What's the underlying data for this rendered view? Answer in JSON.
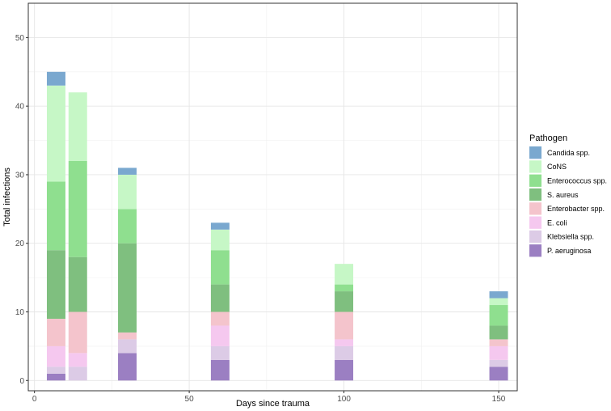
{
  "chart_data": {
    "type": "bar",
    "stacked": true,
    "xlabel": "Days since trauma",
    "ylabel": "Total infections",
    "xlim": [
      -2,
      156
    ],
    "ylim": [
      -1.5,
      55
    ],
    "xticks": [
      0,
      50,
      100,
      150
    ],
    "yticks": [
      0,
      10,
      20,
      30,
      40,
      50
    ],
    "grid": true,
    "legend_position": "right",
    "legend_title": "Pathogen",
    "bar_width_days": 6,
    "x": [
      7,
      14,
      30,
      60,
      100,
      150
    ],
    "series": [
      {
        "name": "P. aeruginosa",
        "color": "#9b7fc2",
        "values": [
          1,
          0,
          4,
          3,
          3,
          2
        ]
      },
      {
        "name": "Klebsiella spp.",
        "color": "#dccbe6",
        "values": [
          1,
          2,
          2,
          2,
          2,
          1
        ]
      },
      {
        "name": "E. coli",
        "color": "#f5c8ef",
        "values": [
          3,
          2,
          0,
          3,
          1,
          2
        ]
      },
      {
        "name": "Enterobacter spp.",
        "color": "#f4c4cc",
        "values": [
          4,
          6,
          1,
          2,
          4,
          1
        ]
      },
      {
        "name": "S. aureus",
        "color": "#7fbf7f",
        "values": [
          10,
          8,
          13,
          4,
          3,
          2
        ]
      },
      {
        "name": "Enterococcus spp.",
        "color": "#8fdf8f",
        "values": [
          10,
          14,
          5,
          5,
          1,
          3
        ]
      },
      {
        "name": "CoNS",
        "color": "#c6f7c6",
        "values": [
          14,
          10,
          5,
          3,
          3,
          1
        ]
      },
      {
        "name": "Candida spp.",
        "color": "#7aa8cf",
        "values": [
          2,
          0,
          1,
          1,
          0,
          1
        ]
      }
    ],
    "legend_order": [
      "Candida spp.",
      "CoNS",
      "Enterococcus spp.",
      "S. aureus",
      "Enterobacter spp.",
      "E. coli",
      "Klebsiella spp.",
      "P. aeruginosa"
    ]
  }
}
